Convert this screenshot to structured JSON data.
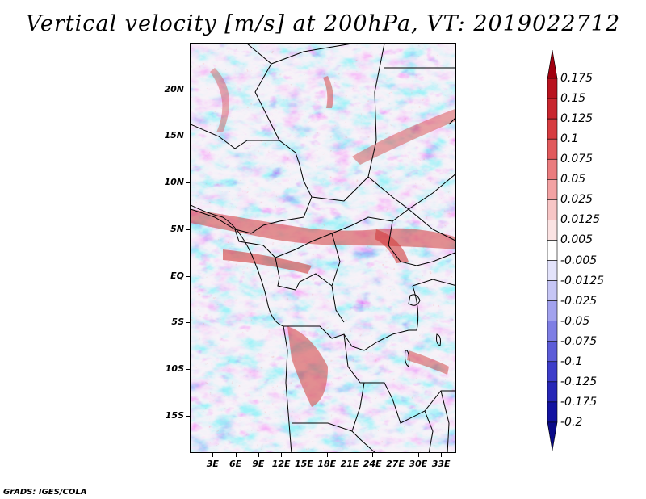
{
  "title": "Vertical velocity [m/s] at 200hPa, VT: 2019022712",
  "credit": "GrADS: IGES/COLA",
  "map": {
    "lat_range": [
      -19,
      25
    ],
    "lon_range": [
      0,
      35
    ],
    "lat_ticks": [
      "20N",
      "15N",
      "10N",
      "5N",
      "EQ",
      "5S",
      "10S",
      "15S"
    ],
    "lat_values": [
      20,
      15,
      10,
      5,
      0,
      -5,
      -10,
      -15
    ],
    "lon_ticks": [
      "3E",
      "6E",
      "9E",
      "12E",
      "15E",
      "18E",
      "21E",
      "24E",
      "27E",
      "30E",
      "33E"
    ],
    "lon_values": [
      3,
      6,
      9,
      12,
      15,
      18,
      21,
      24,
      27,
      30,
      33
    ]
  },
  "colorbar": {
    "labels": [
      "0.175",
      "0.15",
      "0.125",
      "0.1",
      "0.075",
      "0.05",
      "0.025",
      "0.0125",
      "0.005",
      "-0.005",
      "-0.0125",
      "-0.025",
      "-0.05",
      "-0.075",
      "-0.1",
      "-0.125",
      "-0.175",
      "-0.2"
    ],
    "colors": [
      "#a0000f",
      "#b8121e",
      "#c8262e",
      "#d63c40",
      "#e15a5c",
      "#ea7c7e",
      "#f2a2a3",
      "#f7c6c6",
      "#fbe3e3",
      "#ffffff",
      "#e3e3fb",
      "#c6c6f5",
      "#a2a2ee",
      "#7e7ee4",
      "#5c5cd8",
      "#3d3dca",
      "#2626b6",
      "#1212a0",
      "#0a0a88"
    ]
  }
}
